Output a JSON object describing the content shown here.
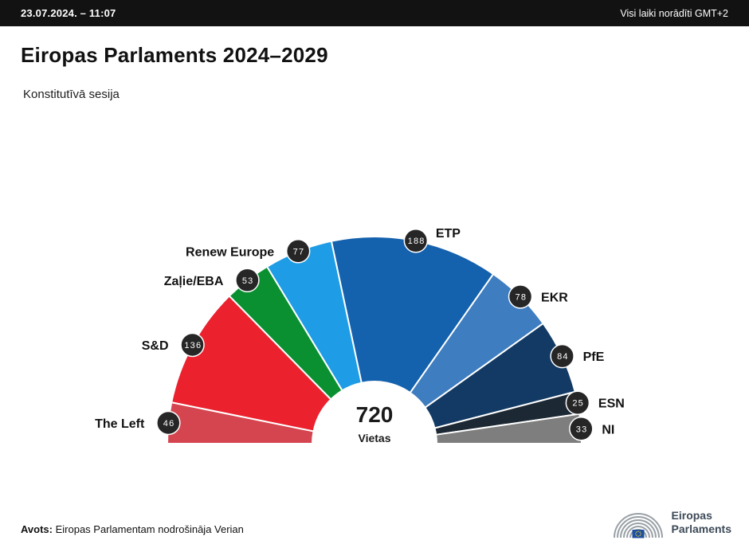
{
  "header": {
    "datetime": "23.07.2024. – 11:07",
    "timezone_note": "Visi laiki norādīti GMT+2"
  },
  "title": "Eiropas Parlaments 2024–2029",
  "subtitle": "Konstitutīvā sesija",
  "chart_data": {
    "type": "pie",
    "subtype": "hemicycle-half-donut",
    "title": "Eiropas Parlaments 2024–2029",
    "total": 720,
    "total_label": "720",
    "total_caption": "Vietas",
    "badge_color": "#262626",
    "badge_text_color": "#ffffff",
    "series": [
      {
        "name": "The Left",
        "seats": 46,
        "color": "#D5454F"
      },
      {
        "name": "S&D",
        "seats": 136,
        "color": "#EB212E"
      },
      {
        "name": "Zaļie/EBA",
        "seats": 53,
        "color": "#0A9030"
      },
      {
        "name": "Renew Europe",
        "seats": 77,
        "color": "#1E9CE5"
      },
      {
        "name": "ETP",
        "seats": 188,
        "color": "#1461AD"
      },
      {
        "name": "EKR",
        "seats": 78,
        "color": "#3E7DC0"
      },
      {
        "name": "PfE",
        "seats": 84,
        "color": "#123A64"
      },
      {
        "name": "ESN",
        "seats": 25,
        "color": "#1C2833"
      },
      {
        "name": "NI",
        "seats": 33,
        "color": "#7E7E7E"
      }
    ]
  },
  "footer": {
    "source_label": "Avots:",
    "source_text": "Eiropas Parlamentam nodrošināja Verian"
  },
  "logo": {
    "line1": "Eiropas",
    "line2": "Parlaments"
  }
}
